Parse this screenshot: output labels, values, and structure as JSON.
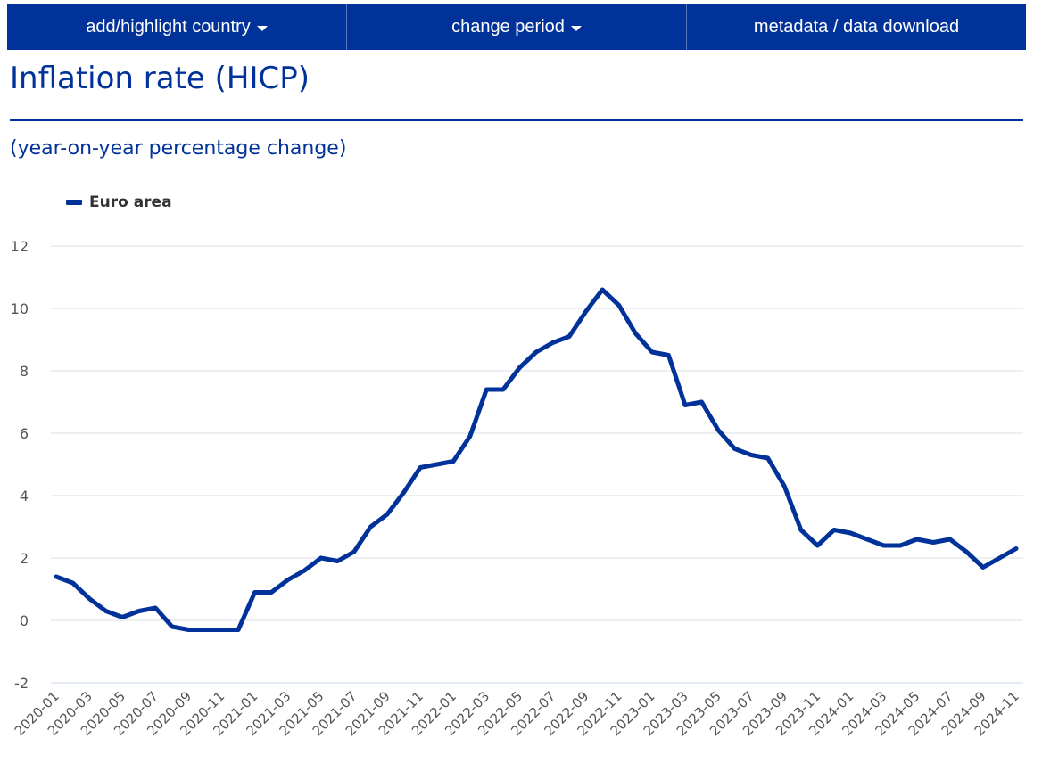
{
  "nav": {
    "add_country": "add/highlight country",
    "change_period": "change period",
    "metadata": "metadata / data download"
  },
  "title": "Inflation rate (HICP)",
  "subtitle": "(year-on-year percentage change)",
  "colors": {
    "brand": "#003299",
    "grid": "#d9dde6"
  },
  "chart_data": {
    "type": "line",
    "title": "Inflation rate (HICP)",
    "subtitle": "(year-on-year percentage change)",
    "ylim": [
      -2,
      12
    ],
    "yticks": [
      -2,
      0,
      2,
      4,
      6,
      8,
      10,
      12
    ],
    "grid": true,
    "legend_position": "top-left",
    "x": [
      "2020-01",
      "2020-02",
      "2020-03",
      "2020-04",
      "2020-05",
      "2020-06",
      "2020-07",
      "2020-08",
      "2020-09",
      "2020-10",
      "2020-11",
      "2020-12",
      "2021-01",
      "2021-02",
      "2021-03",
      "2021-04",
      "2021-05",
      "2021-06",
      "2021-07",
      "2021-08",
      "2021-09",
      "2021-10",
      "2021-11",
      "2021-12",
      "2022-01",
      "2022-02",
      "2022-03",
      "2022-04",
      "2022-05",
      "2022-06",
      "2022-07",
      "2022-08",
      "2022-09",
      "2022-10",
      "2022-11",
      "2022-12",
      "2023-01",
      "2023-02",
      "2023-03",
      "2023-04",
      "2023-05",
      "2023-06",
      "2023-07",
      "2023-08",
      "2023-09",
      "2023-10",
      "2023-11",
      "2023-12",
      "2024-01",
      "2024-02",
      "2024-03",
      "2024-04",
      "2024-05",
      "2024-06",
      "2024-07",
      "2024-08",
      "2024-09",
      "2024-10",
      "2024-11"
    ],
    "xtick_labels": [
      "2020-01",
      "2020-03",
      "2020-05",
      "2020-07",
      "2020-09",
      "2020-11",
      "2021-01",
      "2021-03",
      "2021-05",
      "2021-07",
      "2021-09",
      "2021-11",
      "2022-01",
      "2022-03",
      "2022-05",
      "2022-07",
      "2022-09",
      "2022-11",
      "2023-01",
      "2023-03",
      "2023-05",
      "2023-07",
      "2023-09",
      "2023-11",
      "2024-01",
      "2024-03",
      "2024-05",
      "2024-07",
      "2024-09",
      "2024-11"
    ],
    "series": [
      {
        "name": "Euro area",
        "color": "#003299",
        "values": [
          1.4,
          1.2,
          0.7,
          0.3,
          0.1,
          0.3,
          0.4,
          -0.2,
          -0.3,
          -0.3,
          -0.3,
          -0.3,
          0.9,
          0.9,
          1.3,
          1.6,
          2.0,
          1.9,
          2.2,
          3.0,
          3.4,
          4.1,
          4.9,
          5.0,
          5.1,
          5.9,
          7.4,
          7.4,
          8.1,
          8.6,
          8.9,
          9.1,
          9.9,
          10.6,
          10.1,
          9.2,
          8.6,
          8.5,
          6.9,
          7.0,
          6.1,
          5.5,
          5.3,
          5.2,
          4.3,
          2.9,
          2.4,
          2.9,
          2.8,
          2.6,
          2.4,
          2.4,
          2.6,
          2.5,
          2.6,
          2.2,
          1.7,
          2.0,
          2.3
        ]
      }
    ]
  }
}
